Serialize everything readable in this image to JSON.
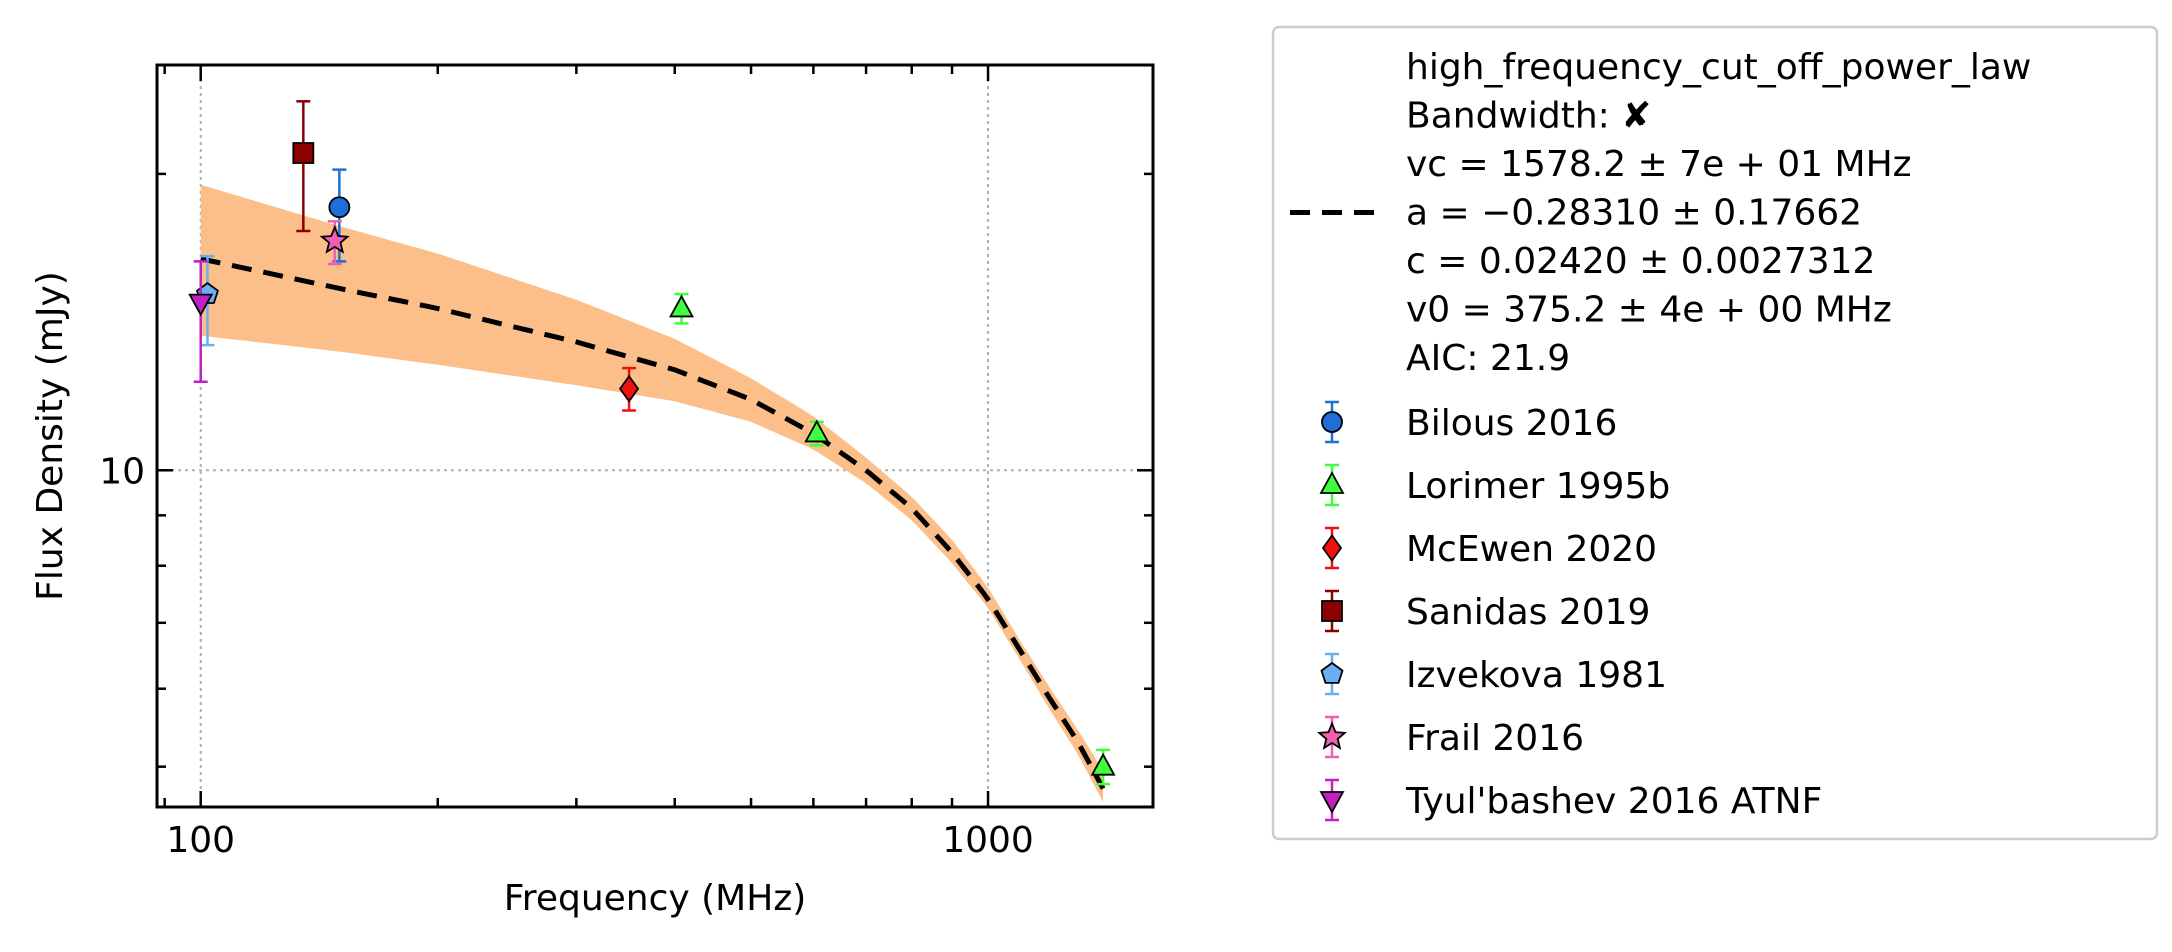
{
  "chart_data": {
    "type": "scatter",
    "xlabel": "Frequency (MHz)",
    "ylabel": "Flux Density (mJy)",
    "x_scale": "log",
    "y_scale": "log",
    "xlim": [
      88,
      1620
    ],
    "ylim": [
      4.55,
      25.8
    ],
    "grid": true,
    "x_ticks": [
      {
        "value": 100,
        "label": "100"
      },
      {
        "value": 1000,
        "label": "1000"
      }
    ],
    "y_ticks": [
      {
        "value": 10,
        "label": "10"
      }
    ],
    "legend_position": "outside-right",
    "fit": {
      "label_lines": [
        "high_frequency_cut_off_power_law",
        "Bandwidth: ✘",
        "vc = 1578.2 ± 7e + 01 MHz",
        "a = −0.28310 ± 0.17662",
        "c = 0.02420 ± 0.0027312",
        "v0 = 375.2 ± 4e + 00 MHz",
        "AIC: 21.9"
      ],
      "model": "high_frequency_cut_off_power_law",
      "vc": 1578.2,
      "a": -0.2831,
      "c": 0.0242,
      "v0": 375.2,
      "x_range": [
        100,
        1400
      ],
      "curve_x": [
        100,
        150,
        200,
        300,
        400,
        500,
        600,
        700,
        800,
        900,
        1000,
        1100,
        1200,
        1300,
        1400
      ],
      "curve_y": [
        16.4,
        15.3,
        14.6,
        13.5,
        12.65,
        11.8,
        10.9,
        10.0,
        9.15,
        8.25,
        7.4,
        6.55,
        5.85,
        5.3,
        4.75
      ],
      "band_lower": [
        13.7,
        13.2,
        12.8,
        12.2,
        11.75,
        11.2,
        10.5,
        9.7,
        8.9,
        8.05,
        7.25,
        6.4,
        5.7,
        5.15,
        4.6
      ],
      "band_upper": [
        19.5,
        17.7,
        16.6,
        14.9,
        13.6,
        12.4,
        11.35,
        10.3,
        9.4,
        8.5,
        7.6,
        6.7,
        6.0,
        5.45,
        4.95
      ],
      "line_color": "#000000",
      "band_color": "#fdbf8a"
    },
    "series": [
      {
        "name": "Bilous 2016",
        "marker": "circle",
        "color": "#1f6fd6",
        "points": [
          {
            "x": 150,
            "y": 18.5,
            "err_low": 2.2,
            "err_high": 1.7
          }
        ]
      },
      {
        "name": "Lorimer 1995b",
        "marker": "triangle-up",
        "color": "#3dff3d",
        "points": [
          {
            "x": 408,
            "y": 14.6,
            "err_low": 0.5,
            "err_high": 0.5
          },
          {
            "x": 606,
            "y": 10.9,
            "err_low": 0.3,
            "err_high": 0.3
          },
          {
            "x": 1400,
            "y": 5.0,
            "err_low": 0.2,
            "err_high": 0.2
          }
        ]
      },
      {
        "name": "McEwen 2020",
        "marker": "diamond",
        "color": "#f01010",
        "points": [
          {
            "x": 350,
            "y": 12.1,
            "err_low": 0.6,
            "err_high": 0.6
          }
        ]
      },
      {
        "name": "Sanidas 2019",
        "marker": "square",
        "color": "#8b0000",
        "points": [
          {
            "x": 135,
            "y": 21.0,
            "err_low": 3.5,
            "err_high": 2.7
          }
        ]
      },
      {
        "name": "Izvekova 1981",
        "marker": "pentagon",
        "color": "#6ab0f0",
        "points": [
          {
            "x": 102,
            "y": 15.1,
            "err_low": 1.7,
            "err_high": 1.4
          }
        ]
      },
      {
        "name": "Frail 2016",
        "marker": "star",
        "color": "#f060b0",
        "points": [
          {
            "x": 148,
            "y": 17.1,
            "err_low": 0.9,
            "err_high": 0.8
          }
        ]
      },
      {
        "name": "Tyul'bashev 2016 ATNF",
        "marker": "triangle-down",
        "color": "#c020c0",
        "points": [
          {
            "x": 100,
            "y": 14.8,
            "err_low": 2.5,
            "err_high": 1.5
          }
        ]
      }
    ]
  }
}
